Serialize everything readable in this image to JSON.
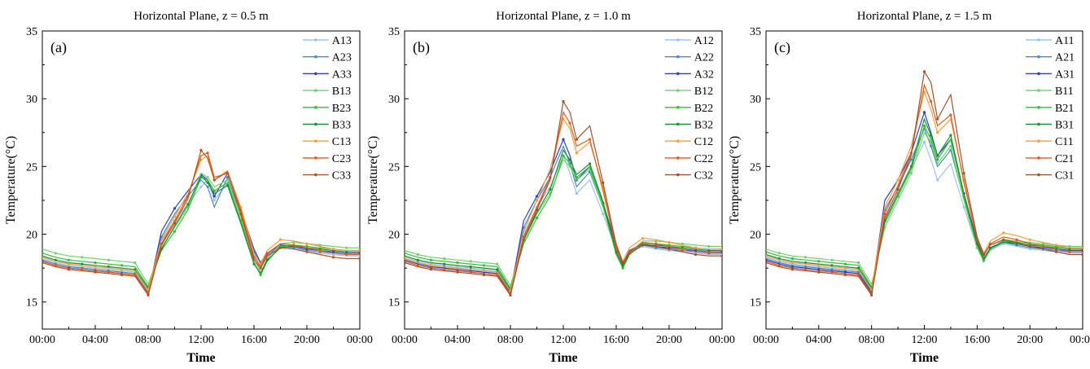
{
  "chart_data": [
    {
      "type": "line",
      "title": "Horizontal Plane, z = 0.5 m",
      "panel_label": "(a)",
      "xlabel": "Time",
      "ylabel": "Temperature(°C)",
      "xlim": [
        "00:00",
        "24:00"
      ],
      "ylim": [
        13,
        35
      ],
      "x_ticks": [
        "00:00",
        "04:00",
        "08:00",
        "12:00",
        "16:00",
        "20:00",
        "00:00"
      ],
      "y_ticks": [
        15,
        20,
        25,
        30,
        35
      ],
      "legend_position": "top-right",
      "x": [
        "00:00",
        "01:00",
        "02:00",
        "03:00",
        "04:00",
        "05:00",
        "06:00",
        "07:00",
        "08:00",
        "09:00",
        "10:00",
        "11:00",
        "12:00",
        "12:30",
        "13:00",
        "14:00",
        "15:00",
        "16:00",
        "16:30",
        "17:00",
        "18:00",
        "19:00",
        "20:00",
        "21:00",
        "22:00",
        "23:00",
        "24:00"
      ],
      "series": [
        {
          "name": "A13",
          "color": "#9dc3e6",
          "values": [
            18.2,
            17.9,
            17.7,
            17.6,
            17.5,
            17.4,
            17.3,
            17.2,
            15.8,
            19.5,
            21.0,
            22.2,
            23.5,
            24.0,
            22.5,
            23.8,
            21.0,
            18.5,
            17.6,
            18.3,
            19.0,
            18.9,
            18.7,
            18.6,
            18.5,
            18.4,
            18.4
          ]
        },
        {
          "name": "A23",
          "color": "#4a86c8",
          "values": [
            18.1,
            17.8,
            17.6,
            17.5,
            17.4,
            17.3,
            17.2,
            17.1,
            15.7,
            19.8,
            21.5,
            22.8,
            24.0,
            23.5,
            22.0,
            24.2,
            21.5,
            18.7,
            17.8,
            18.5,
            19.1,
            19.0,
            18.8,
            18.7,
            18.6,
            18.5,
            18.5
          ]
        },
        {
          "name": "A33",
          "color": "#2f3fbf",
          "values": [
            18.0,
            17.7,
            17.5,
            17.4,
            17.3,
            17.2,
            17.1,
            17.0,
            15.6,
            20.2,
            21.9,
            23.2,
            24.4,
            24.0,
            22.8,
            24.5,
            21.8,
            18.9,
            17.9,
            18.6,
            19.2,
            19.1,
            18.9,
            18.8,
            18.7,
            18.6,
            18.6
          ]
        },
        {
          "name": "B13",
          "color": "#6cd36c",
          "values": [
            18.9,
            18.6,
            18.4,
            18.3,
            18.2,
            18.1,
            18.0,
            17.9,
            16.3,
            19.0,
            20.5,
            22.0,
            24.5,
            24.2,
            23.5,
            24.0,
            21.3,
            18.2,
            17.2,
            18.2,
            19.3,
            19.4,
            19.3,
            19.2,
            19.1,
            19.0,
            19.0
          ]
        },
        {
          "name": "B23",
          "color": "#2fbf2f",
          "values": [
            18.6,
            18.3,
            18.1,
            18.0,
            17.9,
            17.8,
            17.7,
            17.6,
            16.1,
            18.8,
            20.2,
            21.8,
            24.2,
            24.0,
            23.2,
            23.8,
            21.0,
            17.9,
            17.0,
            18.0,
            19.1,
            19.2,
            19.1,
            19.0,
            18.9,
            18.8,
            18.8
          ]
        },
        {
          "name": "B33",
          "color": "#1e8c3a",
          "values": [
            18.4,
            18.1,
            17.9,
            17.8,
            17.7,
            17.6,
            17.5,
            17.4,
            16.0,
            18.9,
            20.6,
            22.2,
            24.3,
            23.8,
            23.0,
            23.6,
            20.8,
            17.8,
            17.1,
            18.1,
            19.0,
            19.1,
            19.0,
            18.9,
            18.8,
            18.7,
            18.7
          ]
        },
        {
          "name": "C13",
          "color": "#f0a040",
          "values": [
            18.3,
            18.0,
            17.8,
            17.7,
            17.6,
            17.5,
            17.4,
            17.3,
            15.9,
            19.6,
            21.3,
            23.0,
            25.5,
            25.8,
            24.0,
            24.7,
            22.0,
            18.6,
            17.8,
            18.8,
            19.6,
            19.5,
            19.3,
            19.1,
            18.9,
            18.8,
            18.8
          ]
        },
        {
          "name": "C23",
          "color": "#e05a1e",
          "values": [
            18.0,
            17.7,
            17.5,
            17.4,
            17.3,
            17.2,
            17.1,
            17.0,
            15.6,
            19.3,
            21.0,
            22.8,
            25.8,
            26.0,
            24.2,
            24.5,
            21.8,
            18.3,
            17.6,
            18.6,
            19.3,
            19.2,
            19.0,
            18.8,
            18.6,
            18.5,
            18.5
          ]
        },
        {
          "name": "C33",
          "color": "#b3541e",
          "values": [
            17.9,
            17.6,
            17.4,
            17.3,
            17.2,
            17.1,
            17.0,
            16.9,
            15.5,
            19.2,
            20.8,
            22.6,
            26.2,
            25.6,
            24.0,
            24.6,
            21.5,
            18.1,
            17.5,
            18.4,
            19.0,
            18.9,
            18.7,
            18.5,
            18.3,
            18.2,
            18.2
          ]
        }
      ]
    },
    {
      "type": "line",
      "title": "Horizontal Plane, z = 1.0 m",
      "panel_label": "(b)",
      "xlabel": "Time",
      "ylabel": "Temperature(°C)",
      "xlim": [
        "00:00",
        "24:00"
      ],
      "ylim": [
        13,
        35
      ],
      "x_ticks": [
        "00:00",
        "04:00",
        "08:00",
        "12:00",
        "16:00",
        "20:00",
        "00:00"
      ],
      "y_ticks": [
        15,
        20,
        25,
        30,
        35
      ],
      "legend_position": "top-right",
      "x": [
        "00:00",
        "01:00",
        "02:00",
        "03:00",
        "04:00",
        "05:00",
        "06:00",
        "07:00",
        "08:00",
        "09:00",
        "10:00",
        "11:00",
        "12:00",
        "12:30",
        "13:00",
        "14:00",
        "15:00",
        "16:00",
        "16:30",
        "17:00",
        "18:00",
        "19:00",
        "20:00",
        "21:00",
        "22:00",
        "23:00",
        "24:00"
      ],
      "series": [
        {
          "name": "A12",
          "color": "#9dc3e6",
          "values": [
            18.3,
            18.0,
            17.8,
            17.7,
            17.6,
            17.5,
            17.4,
            17.3,
            15.9,
            20.0,
            22.0,
            23.5,
            25.8,
            24.5,
            23.0,
            24.0,
            21.5,
            18.8,
            17.6,
            18.6,
            19.1,
            18.9,
            18.8,
            18.7,
            18.6,
            18.5,
            18.5
          ]
        },
        {
          "name": "A22",
          "color": "#4a86c8",
          "values": [
            18.2,
            17.9,
            17.7,
            17.6,
            17.5,
            17.4,
            17.3,
            17.2,
            15.8,
            20.5,
            22.5,
            24.2,
            26.5,
            25.2,
            23.5,
            24.6,
            22.0,
            19.0,
            17.7,
            18.7,
            19.2,
            19.0,
            18.9,
            18.8,
            18.7,
            18.6,
            18.6
          ]
        },
        {
          "name": "A32",
          "color": "#2f3fbf",
          "values": [
            18.1,
            17.8,
            17.6,
            17.5,
            17.4,
            17.3,
            17.2,
            17.1,
            15.7,
            21.0,
            22.8,
            24.6,
            27.0,
            25.8,
            24.0,
            25.0,
            22.3,
            19.2,
            17.8,
            18.8,
            19.3,
            19.1,
            19.0,
            18.9,
            18.8,
            18.7,
            18.7
          ]
        },
        {
          "name": "B12",
          "color": "#6cd36c",
          "values": [
            18.8,
            18.5,
            18.3,
            18.2,
            18.1,
            18.0,
            17.9,
            17.8,
            16.2,
            19.5,
            21.5,
            23.0,
            25.5,
            25.0,
            24.0,
            24.8,
            22.0,
            18.6,
            17.6,
            18.6,
            19.5,
            19.5,
            19.4,
            19.3,
            19.2,
            19.1,
            19.1
          ]
        },
        {
          "name": "B22",
          "color": "#2fbf2f",
          "values": [
            18.6,
            18.3,
            18.1,
            18.0,
            17.9,
            17.8,
            17.7,
            17.6,
            16.0,
            19.3,
            21.2,
            22.8,
            25.8,
            25.2,
            24.2,
            25.0,
            22.2,
            18.5,
            17.5,
            18.5,
            19.3,
            19.3,
            19.2,
            19.1,
            19.0,
            18.9,
            18.9
          ]
        },
        {
          "name": "B32",
          "color": "#1e8c3a",
          "values": [
            18.4,
            18.1,
            17.9,
            17.8,
            17.7,
            17.6,
            17.5,
            17.4,
            15.9,
            19.6,
            21.6,
            23.3,
            26.2,
            25.5,
            24.4,
            25.2,
            22.4,
            18.7,
            17.6,
            18.6,
            19.2,
            19.2,
            19.1,
            19.0,
            18.9,
            18.8,
            18.8
          ]
        },
        {
          "name": "C12",
          "color": "#f0a040",
          "values": [
            18.2,
            17.9,
            17.7,
            17.6,
            17.5,
            17.4,
            17.3,
            17.2,
            15.8,
            20.2,
            22.5,
            24.8,
            28.5,
            27.8,
            26.0,
            26.8,
            23.5,
            19.3,
            18.0,
            19.0,
            19.7,
            19.6,
            19.4,
            19.2,
            19.0,
            18.9,
            18.9
          ]
        },
        {
          "name": "C22",
          "color": "#e05a1e",
          "values": [
            18.0,
            17.7,
            17.5,
            17.4,
            17.3,
            17.2,
            17.1,
            17.0,
            15.6,
            19.8,
            22.0,
            24.2,
            29.0,
            28.2,
            26.5,
            27.0,
            23.2,
            19.0,
            17.8,
            18.7,
            19.4,
            19.3,
            19.1,
            18.9,
            18.7,
            18.6,
            18.6
          ]
        },
        {
          "name": "C32",
          "color": "#a0522d",
          "values": [
            17.9,
            17.6,
            17.4,
            17.3,
            17.2,
            17.1,
            17.0,
            16.9,
            15.5,
            19.6,
            21.8,
            24.0,
            29.8,
            29.0,
            27.0,
            28.0,
            23.8,
            19.2,
            17.9,
            18.6,
            19.2,
            19.1,
            18.9,
            18.7,
            18.5,
            18.4,
            18.4
          ]
        }
      ]
    },
    {
      "type": "line",
      "title": "Horizontal Plane, z = 1.5 m",
      "panel_label": "(c)",
      "xlabel": "Time",
      "ylabel": "Temperature(°C)",
      "xlim": [
        "00:00",
        "24:00"
      ],
      "ylim": [
        13,
        35
      ],
      "x_ticks": [
        "00:00",
        "04:00",
        "08:00",
        "12:00",
        "16:00",
        "20:00",
        "00:00"
      ],
      "y_ticks": [
        15,
        20,
        25,
        30,
        35
      ],
      "legend_position": "top-right",
      "x": [
        "00:00",
        "01:00",
        "02:00",
        "03:00",
        "04:00",
        "05:00",
        "06:00",
        "07:00",
        "08:00",
        "09:00",
        "10:00",
        "11:00",
        "12:00",
        "12:30",
        "13:00",
        "14:00",
        "15:00",
        "16:00",
        "16:30",
        "17:00",
        "18:00",
        "19:00",
        "20:00",
        "21:00",
        "22:00",
        "23:00",
        "24:00"
      ],
      "series": [
        {
          "name": "A11",
          "color": "#9dc3e6",
          "values": [
            18.3,
            18.0,
            17.8,
            17.7,
            17.6,
            17.5,
            17.4,
            17.3,
            15.9,
            21.0,
            23.0,
            24.8,
            26.8,
            25.5,
            24.0,
            25.2,
            22.0,
            19.0,
            18.0,
            18.8,
            19.3,
            19.1,
            18.9,
            18.8,
            18.7,
            18.6,
            18.6
          ]
        },
        {
          "name": "A21",
          "color": "#4a86c8",
          "values": [
            18.2,
            17.9,
            17.7,
            17.6,
            17.5,
            17.4,
            17.3,
            17.2,
            15.8,
            21.8,
            23.5,
            25.5,
            27.8,
            26.5,
            25.0,
            26.2,
            22.6,
            19.3,
            18.1,
            18.9,
            19.4,
            19.2,
            19.0,
            18.9,
            18.8,
            18.7,
            18.7
          ]
        },
        {
          "name": "A31",
          "color": "#2f3fbf",
          "values": [
            18.1,
            17.8,
            17.6,
            17.5,
            17.4,
            17.3,
            17.2,
            17.1,
            15.7,
            22.5,
            24.0,
            26.0,
            29.0,
            27.5,
            25.8,
            27.0,
            23.0,
            19.5,
            18.2,
            19.0,
            19.5,
            19.3,
            19.1,
            19.0,
            18.9,
            18.8,
            18.8
          ]
        },
        {
          "name": "B11",
          "color": "#6cd36c",
          "values": [
            18.9,
            18.6,
            18.4,
            18.3,
            18.2,
            18.1,
            18.0,
            17.9,
            16.3,
            20.5,
            22.5,
            24.5,
            27.5,
            26.8,
            25.2,
            26.5,
            22.5,
            19.0,
            18.0,
            18.9,
            19.6,
            19.5,
            19.4,
            19.3,
            19.2,
            19.1,
            19.1
          ]
        },
        {
          "name": "B21",
          "color": "#2fbf2f",
          "values": [
            18.7,
            18.4,
            18.2,
            18.1,
            18.0,
            17.9,
            17.8,
            17.7,
            16.1,
            20.8,
            22.8,
            24.8,
            28.0,
            27.0,
            25.5,
            27.0,
            22.8,
            19.2,
            18.1,
            18.9,
            19.5,
            19.4,
            19.3,
            19.2,
            19.1,
            19.0,
            19.0
          ]
        },
        {
          "name": "B31",
          "color": "#1e8c3a",
          "values": [
            18.5,
            18.2,
            18.0,
            17.9,
            17.8,
            17.7,
            17.6,
            17.5,
            16.0,
            21.0,
            23.0,
            25.0,
            28.5,
            27.3,
            25.8,
            27.3,
            23.0,
            19.3,
            18.2,
            19.0,
            19.4,
            19.3,
            19.2,
            19.1,
            19.0,
            18.9,
            18.9
          ]
        },
        {
          "name": "C11",
          "color": "#f0a040",
          "values": [
            18.4,
            18.1,
            17.9,
            17.8,
            17.7,
            17.6,
            17.5,
            17.4,
            15.9,
            22.0,
            24.0,
            26.5,
            30.5,
            29.2,
            27.5,
            28.5,
            24.0,
            19.8,
            18.6,
            19.5,
            20.1,
            19.9,
            19.6,
            19.4,
            19.2,
            19.0,
            19.0
          ]
        },
        {
          "name": "C21",
          "color": "#e05a1e",
          "values": [
            18.0,
            17.7,
            17.5,
            17.4,
            17.3,
            17.2,
            17.1,
            17.0,
            15.6,
            21.5,
            23.6,
            26.0,
            31.0,
            29.8,
            28.0,
            28.8,
            23.8,
            19.6,
            18.4,
            19.3,
            19.8,
            19.6,
            19.3,
            19.1,
            18.9,
            18.7,
            18.7
          ]
        },
        {
          "name": "C31",
          "color": "#a0522d",
          "values": [
            17.9,
            17.6,
            17.4,
            17.3,
            17.2,
            17.1,
            17.0,
            16.9,
            15.5,
            21.2,
            23.3,
            25.8,
            32.0,
            31.2,
            28.5,
            30.3,
            24.5,
            19.8,
            18.5,
            19.2,
            19.6,
            19.4,
            19.1,
            18.9,
            18.7,
            18.5,
            18.5
          ]
        }
      ]
    }
  ]
}
